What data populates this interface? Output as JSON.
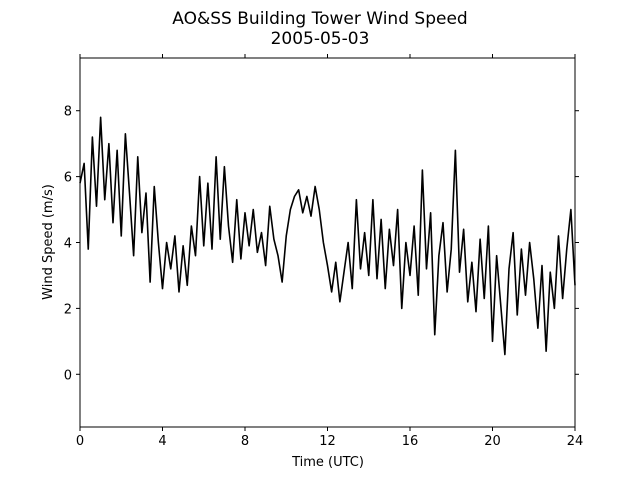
{
  "chart_data": {
    "type": "line",
    "title": "AO&SS Building Tower Wind Speed",
    "subtitle": "2005-05-03",
    "x_label": "Time (UTC)",
    "y_label": "Wind Speed (m/s)",
    "color": "#000000",
    "xlim": [
      0,
      24
    ],
    "xticks": [
      0,
      4,
      8,
      12,
      16,
      20,
      24
    ],
    "ylim": [
      -1.6,
      9.6
    ],
    "yticks": [
      0,
      2,
      4,
      6,
      8
    ],
    "x": [
      0.0,
      0.2,
      0.4,
      0.6,
      0.8,
      1.0,
      1.2,
      1.4,
      1.6,
      1.8,
      2.0,
      2.2,
      2.4,
      2.6,
      2.8,
      3.0,
      3.2,
      3.4,
      3.6,
      3.8,
      4.0,
      4.2,
      4.4,
      4.6,
      4.8,
      5.0,
      5.2,
      5.4,
      5.6,
      5.8,
      6.0,
      6.2,
      6.4,
      6.6,
      6.8,
      7.0,
      7.2,
      7.4,
      7.6,
      7.8,
      8.0,
      8.2,
      8.4,
      8.6,
      8.8,
      9.0,
      9.2,
      9.4,
      9.6,
      9.8,
      10.0,
      10.2,
      10.4,
      10.6,
      10.8,
      11.0,
      11.2,
      11.4,
      11.6,
      11.8,
      12.0,
      12.2,
      12.4,
      12.6,
      12.8,
      13.0,
      13.2,
      13.4,
      13.6,
      13.8,
      14.0,
      14.2,
      14.4,
      14.6,
      14.8,
      15.0,
      15.2,
      15.4,
      15.6,
      15.8,
      16.0,
      16.2,
      16.4,
      16.6,
      16.8,
      17.0,
      17.2,
      17.4,
      17.6,
      17.8,
      18.0,
      18.2,
      18.4,
      18.6,
      18.8,
      19.0,
      19.2,
      19.4,
      19.6,
      19.8,
      20.0,
      20.2,
      20.4,
      20.6,
      20.8,
      21.0,
      21.2,
      21.4,
      21.6,
      21.8,
      22.0,
      22.2,
      22.4,
      22.6,
      22.8,
      23.0,
      23.2,
      23.4,
      23.6,
      23.8,
      24.0
    ],
    "values": [
      5.8,
      6.4,
      3.8,
      7.2,
      5.1,
      7.8,
      5.3,
      7.0,
      4.6,
      6.8,
      4.2,
      7.3,
      5.5,
      3.6,
      6.6,
      4.3,
      5.5,
      2.8,
      5.7,
      4.0,
      2.6,
      4.0,
      3.2,
      4.2,
      2.5,
      3.9,
      2.7,
      4.5,
      3.6,
      6.0,
      3.9,
      5.8,
      3.8,
      6.6,
      4.1,
      6.3,
      4.5,
      3.4,
      5.3,
      3.5,
      4.9,
      3.9,
      5.0,
      3.7,
      4.3,
      3.3,
      5.1,
      4.1,
      3.6,
      2.8,
      4.2,
      5.0,
      5.4,
      5.6,
      4.9,
      5.4,
      4.8,
      5.7,
      5.0,
      4.0,
      3.3,
      2.5,
      3.4,
      2.2,
      3.1,
      4.0,
      2.6,
      5.3,
      3.2,
      4.3,
      3.0,
      5.3,
      2.9,
      4.7,
      2.6,
      4.4,
      3.3,
      5.0,
      2.0,
      4.0,
      3.0,
      4.5,
      2.4,
      6.2,
      3.2,
      4.9,
      1.2,
      3.6,
      4.6,
      2.5,
      3.8,
      6.8,
      3.1,
      4.4,
      2.2,
      3.4,
      1.9,
      4.1,
      2.3,
      4.5,
      1.0,
      3.6,
      2.1,
      0.6,
      3.2,
      4.3,
      1.8,
      3.8,
      2.4,
      4.0,
      2.9,
      1.4,
      3.3,
      0.7,
      3.1,
      2.0,
      4.2,
      2.3,
      3.8,
      5.0,
      2.7
    ]
  }
}
